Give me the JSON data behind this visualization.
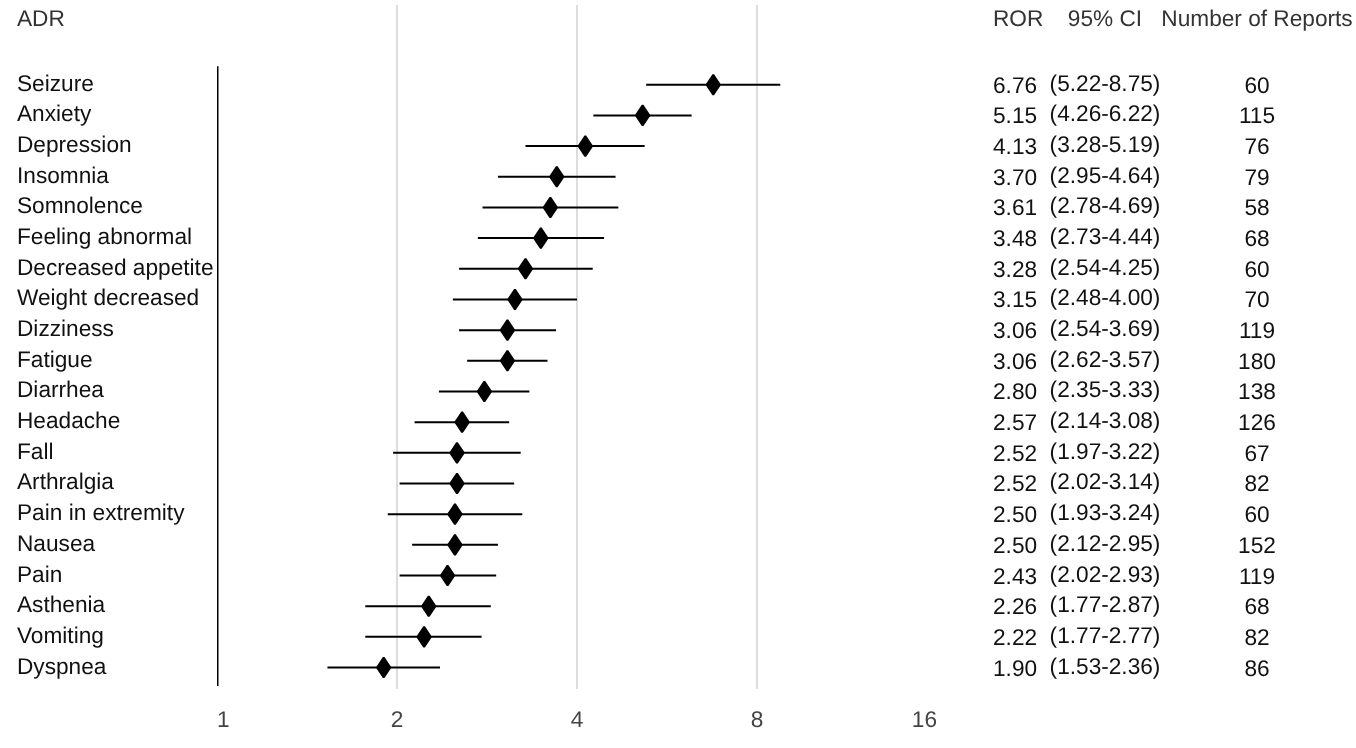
{
  "chart_data": {
    "type": "scatter",
    "orientation": "horizontal",
    "ylabel": "ADR",
    "categories": [
      "Seizure",
      "Anxiety",
      "Depression",
      "Insomnia",
      "Somnolence",
      "Feeling abnormal",
      "Decreased appetite",
      "Weight decreased",
      "Dizziness",
      "Fatigue",
      "Diarrhea",
      "Headache",
      "Fall",
      "Arthralgia",
      "Pain in extremity",
      "Nausea",
      "Pain",
      "Asthenia",
      "Vomiting",
      "Dyspnea"
    ],
    "values": [
      6.76,
      5.15,
      4.13,
      3.7,
      3.61,
      3.48,
      3.28,
      3.15,
      3.06,
      3.06,
      2.8,
      2.57,
      2.52,
      2.52,
      2.5,
      2.5,
      2.43,
      2.26,
      2.22,
      1.9
    ],
    "errors": [
      [
        5.22,
        8.75
      ],
      [
        4.26,
        6.22
      ],
      [
        3.28,
        5.19
      ],
      [
        2.95,
        4.64
      ],
      [
        2.78,
        4.69
      ],
      [
        2.73,
        4.44
      ],
      [
        2.54,
        4.25
      ],
      [
        2.48,
        4.0
      ],
      [
        2.54,
        3.69
      ],
      [
        2.62,
        3.57
      ],
      [
        2.35,
        3.33
      ],
      [
        2.14,
        3.08
      ],
      [
        1.97,
        3.22
      ],
      [
        2.02,
        3.14
      ],
      [
        1.93,
        3.24
      ],
      [
        2.12,
        2.95
      ],
      [
        2.02,
        2.93
      ],
      [
        1.77,
        2.87
      ],
      [
        1.77,
        2.77
      ],
      [
        1.53,
        2.36
      ]
    ],
    "value_labels": [
      "6.76",
      "5.15",
      "4.13",
      "3.70",
      "3.61",
      "3.48",
      "3.28",
      "3.15",
      "3.06",
      "3.06",
      "2.80",
      "2.57",
      "2.52",
      "2.52",
      "2.50",
      "2.50",
      "2.43",
      "2.26",
      "2.22",
      "1.90"
    ],
    "color": "#000000",
    "marker": "diamond",
    "log": "x",
    "xlim": [
      1,
      16
    ],
    "xticks": [
      1,
      2,
      4,
      8,
      16
    ],
    "grid": "x",
    "annotations": [
      "ROR",
      "95% CI",
      "Number of Reports",
      "(5.22-8.75)",
      "(4.26-6.22)",
      "(3.28-5.19)",
      "(2.95-4.64)",
      "(2.78-4.69)",
      "(2.73-4.44)",
      "(2.54-4.25)",
      "(2.48-4.00)",
      "(2.54-3.69)",
      "(2.62-3.57)",
      "(2.35-3.33)",
      "(2.14-3.08)",
      "(1.97-3.22)",
      "(2.02-3.14)",
      "(1.93-3.24)",
      "(2.12-2.95)",
      "(2.02-2.93)",
      "(1.77-2.87)",
      "(1.77-2.77)",
      "(1.53-2.36)",
      "60",
      "115",
      "76",
      "79",
      "58",
      "68",
      "60",
      "70",
      "119",
      "180",
      "138",
      "126",
      "67",
      "82",
      "60",
      "152",
      "119",
      "68",
      "82",
      "86"
    ]
  }
}
